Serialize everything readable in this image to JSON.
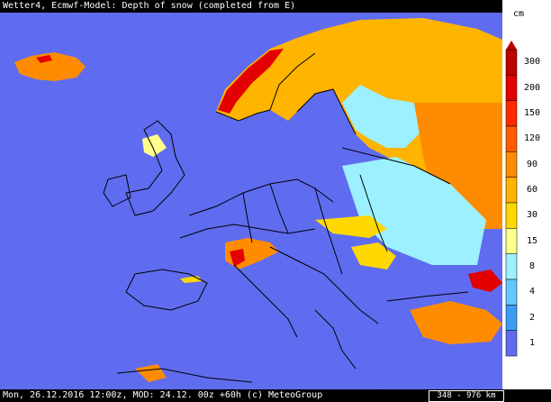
{
  "header": {
    "title": "Wetter4, Ecmwf-Model: Depth of snow (completed from E)"
  },
  "footer": {
    "caption": "Mon, 26.12.2016 12:00z, MOD: 24.12. 00z +60h (c) MeteoGroup",
    "scale_text": "348 - 976 km"
  },
  "legend": {
    "unit": "cm",
    "levels": [
      "300",
      "200",
      "150",
      "120",
      "90",
      "60",
      "30",
      "15",
      "8",
      "4",
      "2",
      "1"
    ],
    "colors": [
      "#bd0000",
      "#e30000",
      "#ff2a00",
      "#ff5a00",
      "#ff8c00",
      "#ffb400",
      "#ffd800",
      "#ffff8c",
      "#9cf0ff",
      "#62c8ff",
      "#3c9cf5",
      "#5f6cf0"
    ]
  },
  "colors": {
    "water": "#5f6cf0",
    "border": "#000000",
    "snow_light": "#9cf0ff",
    "snow_deep": "#ff8c00"
  }
}
